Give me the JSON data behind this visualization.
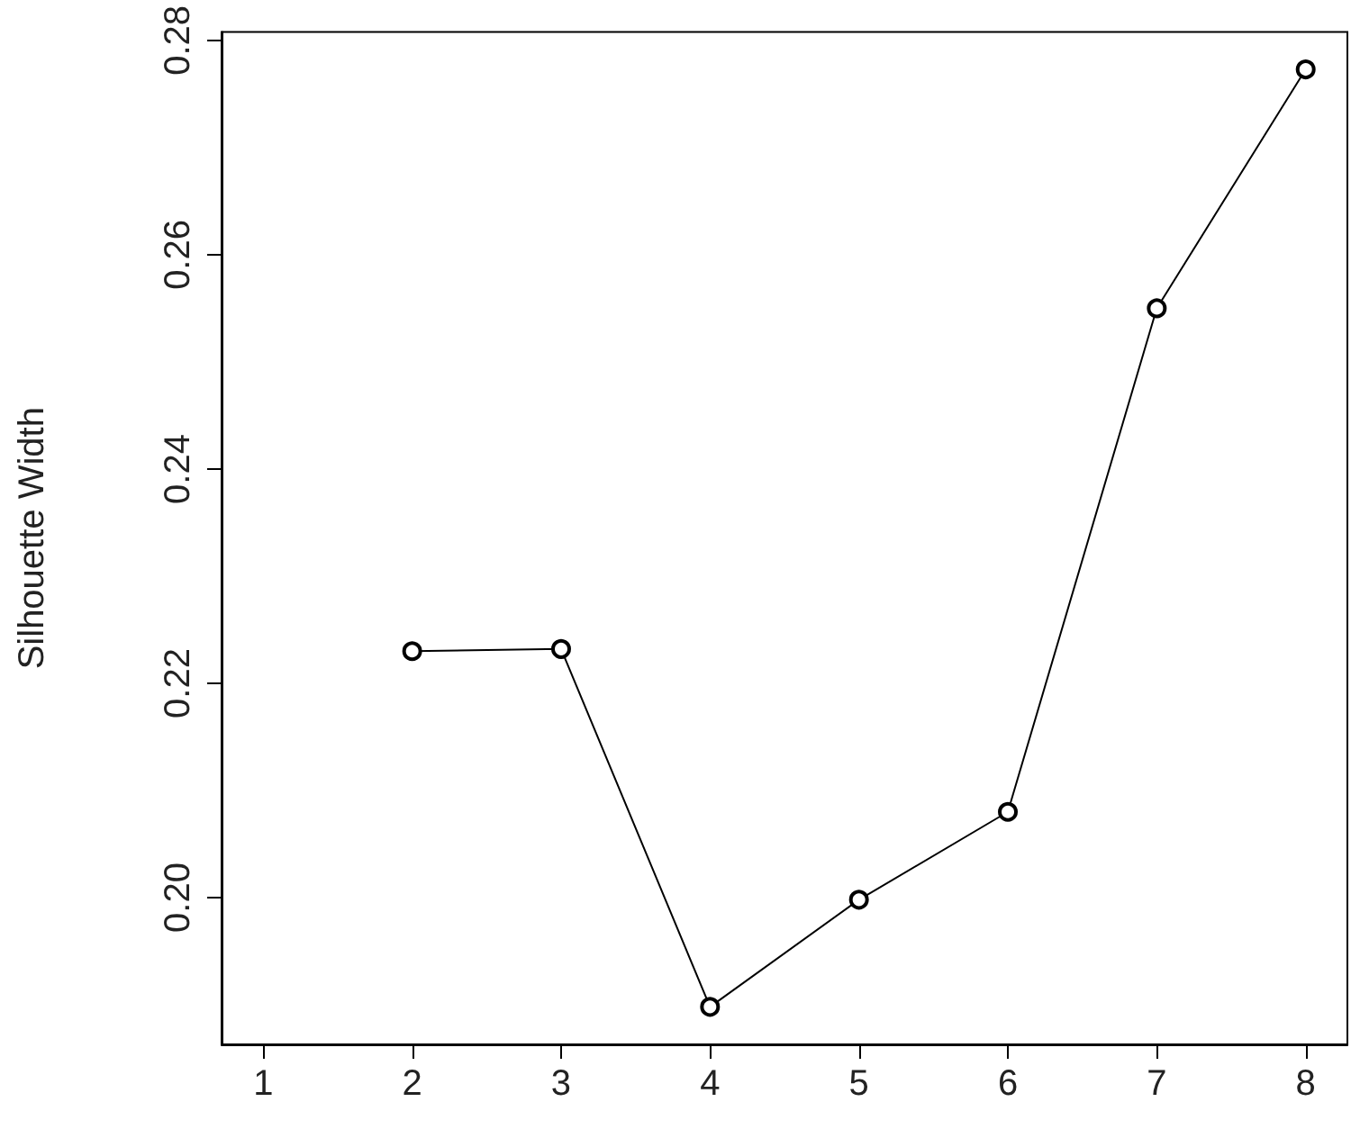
{
  "chart_data": {
    "type": "line",
    "ylabel": "Silhouette Width",
    "x": [
      2,
      3,
      4,
      5,
      6,
      7,
      8
    ],
    "series": [
      {
        "color": "#000000",
        "values": [
          0.223,
          0.2232,
          0.1898,
          0.1998,
          0.208,
          0.255,
          0.2773
        ]
      }
    ],
    "xlim": [
      0.72,
      8.28
    ],
    "xticks": [
      1,
      2,
      3,
      4,
      5,
      6,
      7,
      8
    ],
    "ylim": [
      0.1863,
      0.2808
    ],
    "yticks": [
      {
        "value": 0.2,
        "label": "0.20"
      },
      {
        "value": 0.22,
        "label": "0.22"
      },
      {
        "value": 0.24,
        "label": "0.24"
      },
      {
        "value": 0.26,
        "label": "0.26"
      },
      {
        "value": 0.28,
        "label": "0.28"
      }
    ],
    "grid": false,
    "marker": "circle",
    "line_style": "solid"
  }
}
